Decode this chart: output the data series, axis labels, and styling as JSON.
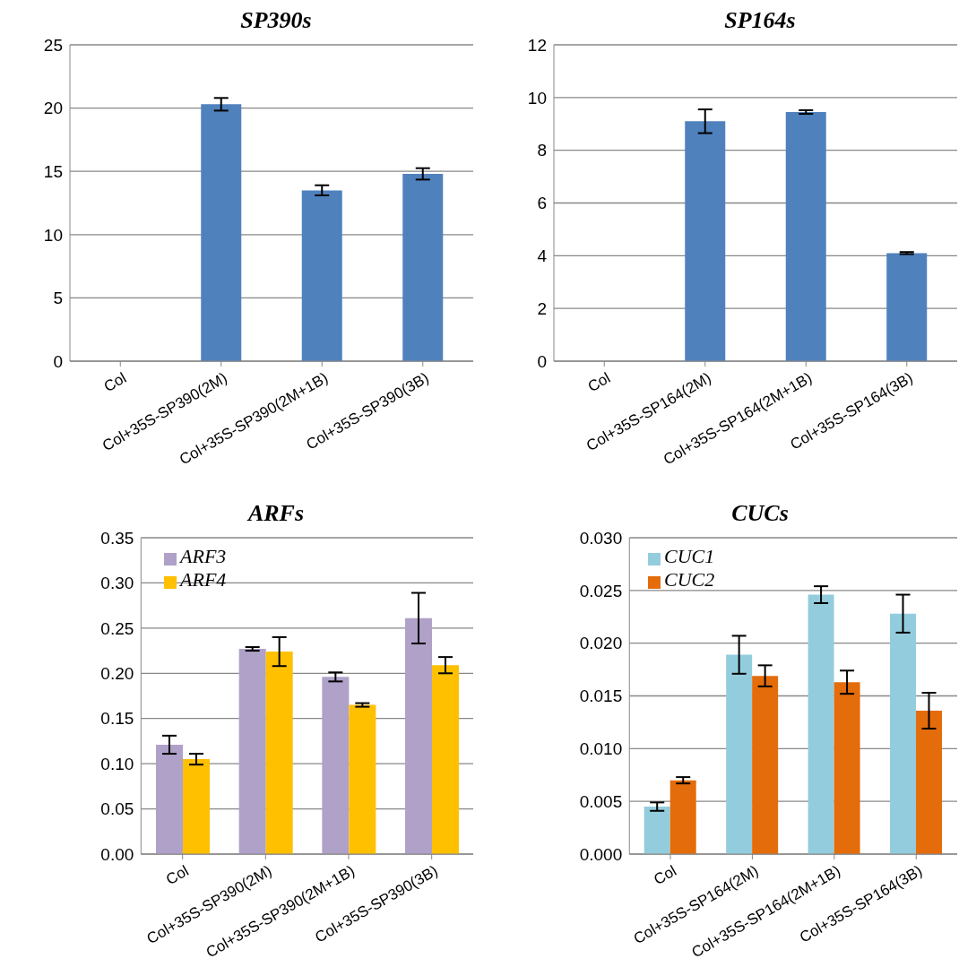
{
  "chart_data": [
    {
      "type": "bar",
      "title": "SP390s",
      "categories": [
        "Col",
        "Col+35S-SP390(2M)",
        "Col+35S-SP390(2M+1B)",
        "Col+35S-SP390(3B)"
      ],
      "values": [
        0,
        20.3,
        13.5,
        14.8
      ],
      "errors": [
        null,
        0.5,
        0.4,
        0.45
      ],
      "color": "#4f81bd",
      "ylim": [
        0,
        25
      ],
      "yticks": [
        0,
        5,
        10,
        15,
        20,
        25
      ],
      "grid": "y",
      "legend": false
    },
    {
      "type": "bar",
      "title": "SP164s",
      "categories": [
        "Col",
        "Col+35S-SP164(2M)",
        "Col+35S-SP164(2M+1B)",
        "Col+35S-SP164(3B)"
      ],
      "values": [
        0,
        9.1,
        9.45,
        4.1
      ],
      "errors": [
        null,
        0.45,
        0.07,
        0.04
      ],
      "color": "#4f81bd",
      "ylim": [
        0,
        12
      ],
      "yticks": [
        0,
        2,
        4,
        6,
        8,
        10,
        12
      ],
      "grid": "y",
      "legend": false
    },
    {
      "type": "bar",
      "title": "ARFs",
      "categories": [
        "Col",
        "Col+35S-SP390(2M)",
        "Col+35S-SP390(2M+1B)",
        "Col+35S-SP390(3B)"
      ],
      "series": [
        {
          "name": "ARF3",
          "color": "#b0a1c8",
          "values": [
            0.121,
            0.227,
            0.196,
            0.261
          ],
          "errors": [
            0.01,
            0.002,
            0.005,
            0.028
          ]
        },
        {
          "name": "ARF4",
          "color": "#ffc000",
          "values": [
            0.105,
            0.224,
            0.165,
            0.209
          ],
          "errors": [
            0.006,
            0.016,
            0.002,
            0.009
          ]
        }
      ],
      "ylim": [
        0,
        0.35
      ],
      "yticks": [
        {
          "value": 0,
          "label": "0.00"
        },
        {
          "value": 0.05,
          "label": "0.05"
        },
        {
          "value": 0.1,
          "label": "0.10"
        },
        {
          "value": 0.15,
          "label": "0.15"
        },
        {
          "value": 0.2,
          "label": "0.20"
        },
        {
          "value": 0.25,
          "label": "0.25"
        },
        {
          "value": 0.3,
          "label": "0.30"
        },
        {
          "value": 0.35,
          "label": "0.35"
        }
      ],
      "grid": "y",
      "legend": "top left"
    },
    {
      "type": "bar",
      "title": "CUCs",
      "categories": [
        "Col",
        "Col+35S-SP164(2M)",
        "Col+35S-SP164(2M+1B)",
        "Col+35S-SP164(3B)"
      ],
      "series": [
        {
          "name": "CUC1",
          "color": "#93cddd",
          "values": [
            0.0045,
            0.0189,
            0.0246,
            0.0228
          ],
          "errors": [
            0.0004,
            0.0018,
            0.0008,
            0.0018
          ]
        },
        {
          "name": "CUC2",
          "color": "#e46c0a",
          "values": [
            0.007,
            0.0169,
            0.0163,
            0.0136
          ],
          "errors": [
            0.0003,
            0.001,
            0.0011,
            0.0017
          ]
        }
      ],
      "ylim": [
        0,
        0.03
      ],
      "yticks": [
        {
          "value": 0,
          "label": "0.000"
        },
        {
          "value": 0.005,
          "label": "0.005"
        },
        {
          "value": 0.01,
          "label": "0.010"
        },
        {
          "value": 0.015,
          "label": "0.015"
        },
        {
          "value": 0.02,
          "label": "0.020"
        },
        {
          "value": 0.025,
          "label": "0.025"
        },
        {
          "value": 0.03,
          "label": "0.030"
        }
      ],
      "grid": "y",
      "legend": "top left"
    }
  ]
}
